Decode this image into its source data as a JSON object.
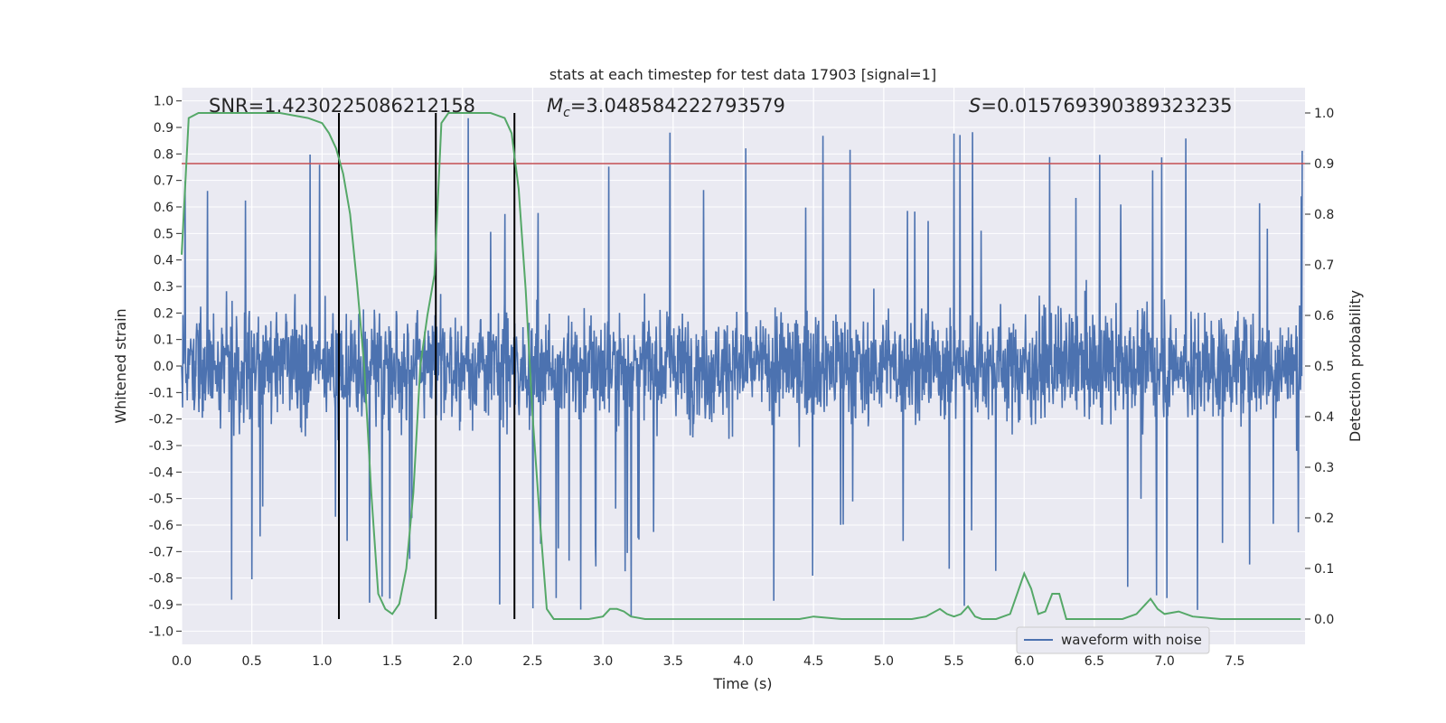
{
  "chart_data": {
    "type": "line",
    "title": "stats at each timestep for test data 17903 [signal=1]",
    "xlabel": "Time (s)",
    "ylabel_left": "Whitened strain",
    "ylabel_right": "Detection probability",
    "xlim": [
      0.0,
      8.0
    ],
    "ylim_left": [
      -1.05,
      1.05
    ],
    "ylim_right": [
      -0.05,
      1.05
    ],
    "x_ticks": [
      0.0,
      0.5,
      1.0,
      1.5,
      2.0,
      2.5,
      3.0,
      3.5,
      4.0,
      4.5,
      5.0,
      5.5,
      6.0,
      6.5,
      7.0,
      7.5
    ],
    "x_tick_labels": [
      "0.0",
      "0.5",
      "1.0",
      "1.5",
      "2.0",
      "2.5",
      "3.0",
      "3.5",
      "4.0",
      "4.5",
      "5.0",
      "5.5",
      "6.0",
      "6.5",
      "7.0",
      "7.5"
    ],
    "y_left_ticks": [
      1.0,
      0.9,
      0.8,
      0.7,
      0.6,
      0.5,
      0.4,
      0.3,
      0.2,
      0.1,
      0.0,
      -0.1,
      -0.2,
      -0.3,
      -0.4,
      -0.5,
      -0.6,
      -0.7,
      -0.8,
      -0.9,
      -1.0
    ],
    "y_left_tick_labels": [
      "1.0",
      "0.9",
      "0.8",
      "0.7",
      "0.6",
      "0.5",
      "0.4",
      "0.3",
      "0.2",
      "0.1",
      "0.0",
      "-0.1",
      "-0.2",
      "-0.3",
      "-0.4",
      "-0.5",
      "-0.6",
      "-0.7",
      "-0.8",
      "-0.9",
      "-1.0"
    ],
    "y_right_ticks": [
      1.0,
      0.9,
      0.8,
      0.7,
      0.6,
      0.5,
      0.4,
      0.3,
      0.2,
      0.1,
      0.0
    ],
    "y_right_tick_labels": [
      "1.0",
      "0.9",
      "0.8",
      "0.7",
      "0.6",
      "0.5",
      "0.4",
      "0.3",
      "0.2",
      "0.1",
      "0.0"
    ],
    "annotations": {
      "snr": "SNR=1.4230225086212158",
      "mc_symbol": "M",
      "mc_sub": "c",
      "mc_value": "=3.048584222793579",
      "s_symbol": "S",
      "s_value": "=0.01576939038932323​5"
    },
    "threshold": {
      "axis": "right",
      "value": 0.9,
      "color": "#c44e52"
    },
    "vertical_markers": [
      1.12,
      1.81,
      2.37
    ],
    "series": [
      {
        "name": "waveform with noise",
        "axis": "left",
        "color": "#4c72b0",
        "kind": "whitened noise, approx. |strain| <= 0.35 typical with spikes to +/-1.0",
        "approx_envelope": {
          "upper_typical": 0.4,
          "lower_typical": -0.4,
          "max": 1.0,
          "min": -0.95
        }
      },
      {
        "axis": "right",
        "color": "#55a868",
        "x": [
          0.0,
          0.05,
          0.12,
          0.3,
          0.5,
          0.7,
          0.9,
          1.0,
          1.05,
          1.1,
          1.15,
          1.2,
          1.25,
          1.3,
          1.35,
          1.4,
          1.45,
          1.5,
          1.55,
          1.6,
          1.65,
          1.7,
          1.75,
          1.8,
          1.85,
          1.9,
          1.95,
          2.0,
          2.1,
          2.2,
          2.3,
          2.35,
          2.4,
          2.45,
          2.5,
          2.55,
          2.6,
          2.65,
          2.7,
          2.8,
          2.9,
          3.0,
          3.05,
          3.1,
          3.15,
          3.2,
          3.3,
          3.5,
          3.8,
          4.0,
          4.2,
          4.4,
          4.5,
          4.7,
          5.0,
          5.2,
          5.3,
          5.4,
          5.45,
          5.5,
          5.55,
          5.6,
          5.65,
          5.7,
          5.8,
          5.9,
          6.0,
          6.05,
          6.1,
          6.15,
          6.2,
          6.25,
          6.3,
          6.35,
          6.4,
          6.5,
          6.7,
          6.8,
          6.9,
          6.95,
          7.0,
          7.1,
          7.2,
          7.4,
          7.6,
          7.8,
          7.97
        ],
        "y": [
          0.72,
          0.99,
          1.0,
          1.0,
          1.0,
          1.0,
          0.99,
          0.98,
          0.96,
          0.93,
          0.88,
          0.8,
          0.66,
          0.5,
          0.25,
          0.05,
          0.02,
          0.01,
          0.03,
          0.1,
          0.25,
          0.5,
          0.6,
          0.68,
          0.98,
          1.0,
          1.0,
          1.0,
          1.0,
          1.0,
          0.99,
          0.96,
          0.85,
          0.65,
          0.4,
          0.2,
          0.02,
          0.0,
          0.0,
          0.0,
          0.0,
          0.005,
          0.02,
          0.02,
          0.015,
          0.005,
          0.0,
          0.0,
          0.0,
          0.0,
          0.0,
          0.0,
          0.005,
          0.0,
          0.0,
          0.0,
          0.005,
          0.02,
          0.01,
          0.005,
          0.01,
          0.025,
          0.005,
          0.0,
          0.0,
          0.01,
          0.09,
          0.06,
          0.01,
          0.015,
          0.05,
          0.05,
          0.0,
          0.0,
          0.0,
          0.0,
          0.0,
          0.01,
          0.04,
          0.02,
          0.01,
          0.015,
          0.005,
          0.0,
          0.0,
          0.0,
          0.0
        ]
      }
    ],
    "legend": {
      "position": "lower-right",
      "entries": [
        "waveform with noise"
      ]
    }
  }
}
